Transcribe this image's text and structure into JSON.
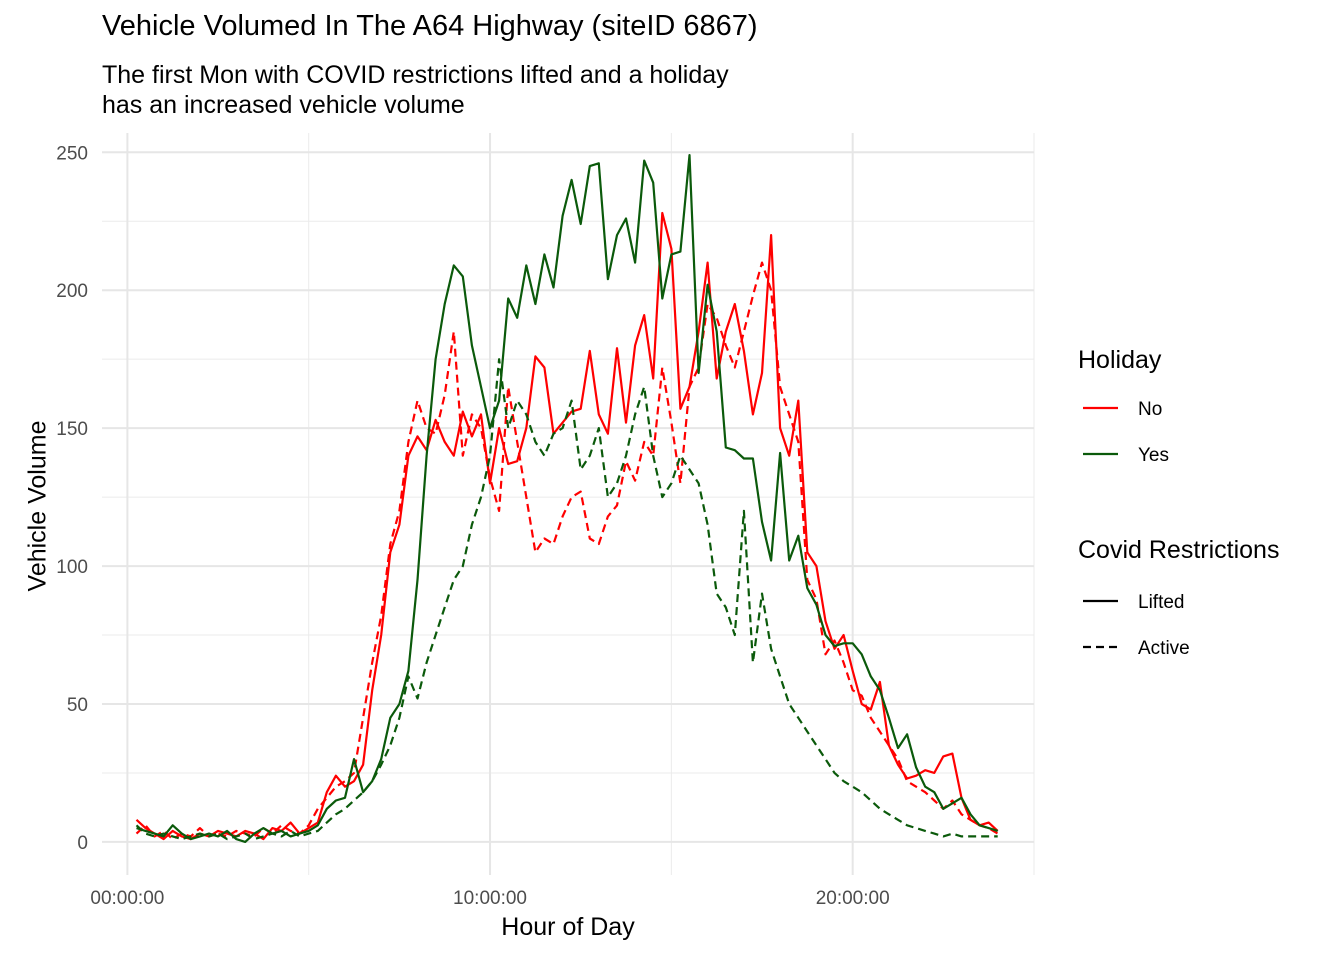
{
  "chart_data": {
    "type": "line",
    "title": "Vehicle Volumed In The A64 Highway (siteID 6867)",
    "subtitle_lines": [
      "The first Mon with COVID restrictions lifted and a holiday",
      "has an increased vehicle volume"
    ],
    "xlabel": "Hour of Day",
    "ylabel": "Vehicle Volume",
    "xlim_hours": [
      -0.7,
      25.0
    ],
    "ylim": [
      -12,
      257
    ],
    "x_ticks": [
      {
        "value": 0,
        "label": "00:00:00"
      },
      {
        "value": 10,
        "label": "10:00:00"
      },
      {
        "value": 20,
        "label": "20:00:00"
      }
    ],
    "x_minor_ticks": [
      5,
      15,
      25
    ],
    "y_ticks": [
      0,
      50,
      100,
      150,
      200,
      250
    ],
    "y_minor_ticks": [
      25,
      75,
      125,
      175,
      225
    ],
    "grid": true,
    "legends": [
      {
        "title": "Holiday",
        "placement": "right",
        "entries": [
          {
            "label": "No",
            "color": "#ff0000"
          },
          {
            "label": "Yes",
            "color": "#0b5a0b"
          }
        ]
      },
      {
        "title": "Covid Restrictions",
        "placement": "right",
        "entries": [
          {
            "label": "Lifted",
            "linetype": "solid"
          },
          {
            "label": "Active",
            "linetype": "dashed"
          }
        ]
      }
    ],
    "colors": {
      "No": "#ff0000",
      "Yes": "#0b5a0b"
    },
    "series": [
      {
        "holiday": "No",
        "covid": "Lifted",
        "color": "#ff0000",
        "dash": "solid",
        "x": [
          0.25,
          0.5,
          0.75,
          1.0,
          1.25,
          1.5,
          1.75,
          2.0,
          2.25,
          2.5,
          2.75,
          3.0,
          3.25,
          3.5,
          3.75,
          4.0,
          4.25,
          4.5,
          4.75,
          5.0,
          5.25,
          5.5,
          5.75,
          6.0,
          6.25,
          6.5,
          6.75,
          7.0,
          7.25,
          7.5,
          7.75,
          8.0,
          8.25,
          8.5,
          8.75,
          9.0,
          9.25,
          9.5,
          9.75,
          10.0,
          10.25,
          10.5,
          10.75,
          11.0,
          11.25,
          11.5,
          11.75,
          12.0,
          12.25,
          12.5,
          12.75,
          13.0,
          13.25,
          13.5,
          13.75,
          14.0,
          14.25,
          14.5,
          14.75,
          15.0,
          15.25,
          15.5,
          15.75,
          16.0,
          16.25,
          16.5,
          16.75,
          17.0,
          17.25,
          17.5,
          17.75,
          18.0,
          18.25,
          18.5,
          18.75,
          19.0,
          19.25,
          19.5,
          19.75,
          20.0,
          20.25,
          20.5,
          20.75,
          21.0,
          21.25,
          21.5,
          21.75,
          22.0,
          22.25,
          22.5,
          22.75,
          23.0,
          23.25,
          23.5,
          23.75,
          24.0
        ],
        "y": [
          8,
          5,
          3,
          1,
          4,
          2,
          1,
          3,
          2,
          4,
          3,
          2,
          4,
          3,
          1,
          5,
          4,
          7,
          3,
          5,
          7,
          18,
          24,
          20,
          22,
          28,
          55,
          75,
          105,
          115,
          140,
          147,
          142,
          153,
          145,
          140,
          156,
          147,
          155,
          130,
          150,
          137,
          138,
          150,
          176,
          172,
          148,
          152,
          156,
          157,
          178,
          155,
          148,
          179,
          152,
          180,
          191,
          168,
          228,
          215,
          157,
          165,
          185,
          210,
          168,
          185,
          195,
          178,
          155,
          170,
          220,
          150,
          140,
          160,
          105,
          100,
          80,
          70,
          75,
          62,
          50,
          48,
          58,
          35,
          28,
          23,
          24,
          26,
          25,
          31,
          32,
          16,
          8,
          6,
          7,
          4
        ]
      },
      {
        "holiday": "No",
        "covid": "Active",
        "color": "#ff0000",
        "dash": "dashed",
        "x": [
          0.25,
          0.5,
          0.75,
          1.0,
          1.25,
          1.5,
          1.75,
          2.0,
          2.25,
          2.5,
          2.75,
          3.0,
          3.25,
          3.5,
          3.75,
          4.0,
          4.25,
          4.5,
          4.75,
          5.0,
          5.25,
          5.5,
          5.75,
          6.0,
          6.25,
          6.5,
          6.75,
          7.0,
          7.25,
          7.5,
          7.75,
          8.0,
          8.25,
          8.5,
          8.75,
          9.0,
          9.25,
          9.5,
          9.75,
          10.0,
          10.25,
          10.5,
          10.75,
          11.0,
          11.25,
          11.5,
          11.75,
          12.0,
          12.25,
          12.5,
          12.75,
          13.0,
          13.25,
          13.5,
          13.75,
          14.0,
          14.25,
          14.5,
          14.75,
          15.0,
          15.25,
          15.5,
          15.75,
          16.0,
          16.25,
          16.5,
          16.75,
          17.0,
          17.25,
          17.5,
          17.75,
          18.0,
          18.25,
          18.5,
          18.75,
          19.0,
          19.25,
          19.5,
          19.75,
          20.0,
          20.25,
          20.5,
          20.75,
          21.0,
          21.25,
          21.5,
          21.75,
          22.0,
          22.25,
          22.5,
          22.75,
          23.0,
          23.25,
          23.5,
          23.75,
          24.0
        ],
        "y": [
          3,
          6,
          2,
          4,
          1,
          3,
          2,
          5,
          2,
          3,
          2,
          4,
          3,
          2,
          5,
          3,
          6,
          4,
          3,
          6,
          12,
          16,
          20,
          22,
          25,
          45,
          65,
          82,
          108,
          120,
          145,
          160,
          150,
          148,
          162,
          185,
          140,
          155,
          150,
          132,
          120,
          165,
          145,
          125,
          105,
          110,
          108,
          118,
          125,
          127,
          110,
          108,
          118,
          122,
          138,
          131,
          145,
          140,
          172,
          152,
          130,
          165,
          172,
          195,
          190,
          180,
          172,
          185,
          198,
          210,
          200,
          165,
          155,
          145,
          95,
          88,
          68,
          73,
          65,
          55,
          53,
          45,
          40,
          35,
          30,
          22,
          20,
          18,
          15,
          12,
          15,
          10,
          8,
          6,
          5,
          3
        ]
      },
      {
        "holiday": "Yes",
        "covid": "Lifted",
        "color": "#0b5a0b",
        "dash": "solid",
        "x": [
          0.25,
          0.5,
          0.75,
          1.0,
          1.25,
          1.5,
          1.75,
          2.0,
          2.25,
          2.5,
          2.75,
          3.0,
          3.25,
          3.5,
          3.75,
          4.0,
          4.25,
          4.5,
          4.75,
          5.0,
          5.25,
          5.5,
          5.75,
          6.0,
          6.25,
          6.5,
          6.75,
          7.0,
          7.25,
          7.5,
          7.75,
          8.0,
          8.25,
          8.5,
          8.75,
          9.0,
          9.25,
          9.5,
          9.75,
          10.0,
          10.25,
          10.5,
          10.75,
          11.0,
          11.25,
          11.5,
          11.75,
          12.0,
          12.25,
          12.5,
          12.75,
          13.0,
          13.25,
          13.5,
          13.75,
          14.0,
          14.25,
          14.5,
          14.75,
          15.0,
          15.25,
          15.5,
          15.75,
          16.0,
          16.25,
          16.5,
          16.75,
          17.0,
          17.25,
          17.5,
          17.75,
          18.0,
          18.25,
          18.5,
          18.75,
          19.0,
          19.25,
          19.5,
          19.75,
          20.0,
          20.25,
          20.5,
          20.75,
          21.0,
          21.25,
          21.5,
          21.75,
          22.0,
          22.25,
          22.5,
          22.75,
          23.0,
          23.25,
          23.5,
          23.75,
          24.0
        ],
        "y": [
          5,
          4,
          3,
          2,
          6,
          3,
          1,
          2,
          3,
          2,
          4,
          1,
          0,
          3,
          5,
          3,
          4,
          2,
          3,
          4,
          6,
          12,
          15,
          16,
          30,
          18,
          22,
          30,
          45,
          50,
          62,
          95,
          140,
          175,
          195,
          209,
          205,
          180,
          165,
          150,
          160,
          197,
          190,
          209,
          195,
          213,
          201,
          227,
          240,
          224,
          245,
          246,
          204,
          220,
          226,
          210,
          247,
          239,
          197,
          213,
          214,
          249,
          170,
          202,
          185,
          143,
          142,
          139,
          139,
          116,
          102,
          141,
          102,
          111,
          92,
          86,
          75,
          71,
          72,
          72,
          68,
          60,
          55,
          45,
          34,
          39,
          27,
          20,
          18,
          12,
          14,
          16,
          10,
          6,
          5,
          4
        ]
      },
      {
        "holiday": "Yes",
        "covid": "Active",
        "color": "#0b5a0b",
        "dash": "dashed",
        "x": [
          0.25,
          0.5,
          0.75,
          1.0,
          1.25,
          1.5,
          1.75,
          2.0,
          2.25,
          2.5,
          2.75,
          3.0,
          3.25,
          3.5,
          3.75,
          4.0,
          4.25,
          4.5,
          4.75,
          5.0,
          5.25,
          5.5,
          5.75,
          6.0,
          6.25,
          6.5,
          6.75,
          7.0,
          7.25,
          7.5,
          7.75,
          8.0,
          8.25,
          8.5,
          8.75,
          9.0,
          9.25,
          9.5,
          9.75,
          10.0,
          10.25,
          10.5,
          10.75,
          11.0,
          11.25,
          11.5,
          11.75,
          12.0,
          12.25,
          12.5,
          12.75,
          13.0,
          13.25,
          13.5,
          13.75,
          14.0,
          14.25,
          14.5,
          14.75,
          15.0,
          15.25,
          15.5,
          15.75,
          16.0,
          16.25,
          16.5,
          16.75,
          17.0,
          17.25,
          17.5,
          17.75,
          18.0,
          18.25,
          18.5,
          18.75,
          19.0,
          19.25,
          19.5,
          19.75,
          20.0,
          20.25,
          20.5,
          20.75,
          21.0,
          21.25,
          21.5,
          21.75,
          22.0,
          22.25,
          22.5,
          22.75,
          23.0,
          23.25,
          23.5,
          23.75,
          24.0
        ],
        "y": [
          6,
          3,
          2,
          3,
          2,
          1,
          2,
          3,
          2,
          3,
          1,
          2,
          3,
          1,
          2,
          3,
          2,
          4,
          2,
          3,
          4,
          7,
          10,
          12,
          15,
          18,
          22,
          28,
          35,
          45,
          60,
          52,
          65,
          75,
          85,
          95,
          100,
          115,
          125,
          140,
          175,
          150,
          160,
          155,
          145,
          140,
          148,
          150,
          160,
          135,
          140,
          150,
          125,
          130,
          140,
          155,
          165,
          140,
          125,
          130,
          140,
          135,
          130,
          115,
          90,
          85,
          75,
          120,
          65,
          90,
          70,
          60,
          50,
          45,
          40,
          35,
          30,
          25,
          22,
          20,
          18,
          15,
          12,
          10,
          8,
          6,
          5,
          4,
          3,
          2,
          3,
          2,
          2,
          2,
          2,
          2
        ]
      }
    ]
  }
}
